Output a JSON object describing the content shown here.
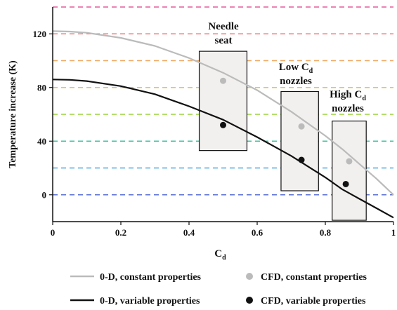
{
  "chart_data": {
    "type": "line",
    "xlabel": "C",
    "xlabel_sub": "d",
    "ylabel": "Temperature increase (K)",
    "xlim": [
      0,
      1
    ],
    "ylim": [
      -20,
      140
    ],
    "x_ticks": [
      0,
      0.2,
      0.4,
      0.6,
      0.8,
      1
    ],
    "x_tick_labels": [
      "0",
      "0.2",
      "0.4",
      "0.6",
      "0.8",
      "1"
    ],
    "y_ticks": [
      0,
      40,
      80,
      120
    ],
    "y_tick_labels": [
      "0",
      "40",
      "80",
      "120"
    ],
    "grid_lines": [
      {
        "y": 0,
        "color": "#5a6fd6"
      },
      {
        "y": 20,
        "color": "#4aa8e0"
      },
      {
        "y": 40,
        "color": "#3cc4a0"
      },
      {
        "y": 60,
        "color": "#9ad43c"
      },
      {
        "y": 80,
        "color": "#e0c84a"
      },
      {
        "y": 100,
        "color": "#f0a860"
      },
      {
        "y": 120,
        "color": "#f07a7a"
      },
      {
        "y": 140,
        "color": "#e85a9a"
      }
    ],
    "series": [
      {
        "name": "0-D, constant properties",
        "kind": "line",
        "color": "#bbbbbb",
        "x": [
          0,
          0.05,
          0.1,
          0.2,
          0.3,
          0.4,
          0.5,
          0.6,
          0.7,
          0.8,
          0.85,
          0.9,
          0.95,
          1.0
        ],
        "y": [
          122,
          121.7,
          120.8,
          117,
          111,
          102,
          91,
          78,
          62,
          44,
          34,
          23,
          12,
          0
        ]
      },
      {
        "name": "0-D, variable properties",
        "kind": "line",
        "color": "#111111",
        "x": [
          0,
          0.05,
          0.1,
          0.2,
          0.3,
          0.4,
          0.5,
          0.6,
          0.7,
          0.8,
          0.85,
          0.9,
          0.95,
          1.0
        ],
        "y": [
          86,
          85.7,
          84.8,
          81,
          75,
          66,
          56,
          43,
          29,
          13,
          4,
          -3,
          -10,
          -17
        ]
      },
      {
        "name": "CFD, constant properties",
        "kind": "scatter",
        "color": "#bbbbbb",
        "x": [
          0.5,
          0.73,
          0.87
        ],
        "y": [
          85,
          51,
          25
        ]
      },
      {
        "name": "CFD, variable properties",
        "kind": "scatter",
        "color": "#111111",
        "x": [
          0.5,
          0.73,
          0.86
        ],
        "y": [
          52,
          26,
          8
        ]
      }
    ],
    "boxes": [
      {
        "x": [
          0.43,
          0.57
        ],
        "y": [
          33,
          107
        ]
      },
      {
        "x": [
          0.67,
          0.78
        ],
        "y": [
          3,
          77
        ]
      },
      {
        "x": [
          0.82,
          0.92
        ],
        "y": [
          -19,
          55
        ]
      }
    ],
    "annotations": [
      {
        "lines": [
          {
            "text": "Needle"
          },
          {
            "text": "seat"
          }
        ]
      },
      {
        "lines": [
          {
            "text": "Low C",
            "sub": "d"
          },
          {
            "text": "nozzles"
          }
        ]
      },
      {
        "lines": [
          {
            "text": "High C",
            "sub": "d"
          },
          {
            "text": "nozzles"
          }
        ]
      }
    ],
    "legend": [
      {
        "label": "0-D, constant properties",
        "kind": "line",
        "color": "#bbbbbb"
      },
      {
        "label": "CFD, constant properties",
        "kind": "dot",
        "color": "#bbbbbb"
      },
      {
        "label": "0-D, variable properties",
        "kind": "line",
        "color": "#111111"
      },
      {
        "label": "CFD, variable properties",
        "kind": "dot",
        "color": "#111111"
      }
    ],
    "legend_position": "bottom"
  }
}
